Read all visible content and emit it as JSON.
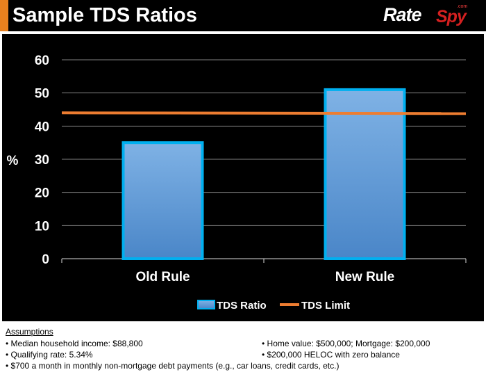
{
  "header": {
    "title": "Sample TDS Ratios",
    "logo_rate": "Rate",
    "logo_spy": "Spy",
    "logo_com": ".com",
    "accent_color": "#e8801e"
  },
  "chart_data": {
    "type": "bar",
    "categories": [
      "Old Rule",
      "New Rule"
    ],
    "series": [
      {
        "name": "TDS Ratio",
        "type": "bar",
        "values": [
          35,
          51
        ],
        "color": "#5b9bd5"
      },
      {
        "name": "TDS Limit",
        "type": "line",
        "values": [
          44,
          44
        ],
        "color": "#ed7d31"
      }
    ],
    "title": "",
    "xlabel": "",
    "ylabel": "%",
    "ylim": [
      0,
      60
    ],
    "yticks": [
      0,
      10,
      20,
      30,
      40,
      50,
      60
    ],
    "grid": true,
    "legend": "bottom"
  },
  "notes": {
    "heading": "Assumptions",
    "items": [
      "• Median household income: $88,800",
      "• Home value: $500,000; Mortgage: $200,000",
      "• Qualifying rate: 5.34%",
      "• $200,000 HELOC with zero balance",
      "• $700 a month in monthly non-mortgage debt payments (e.g., car loans, credit cards, etc.)"
    ]
  }
}
